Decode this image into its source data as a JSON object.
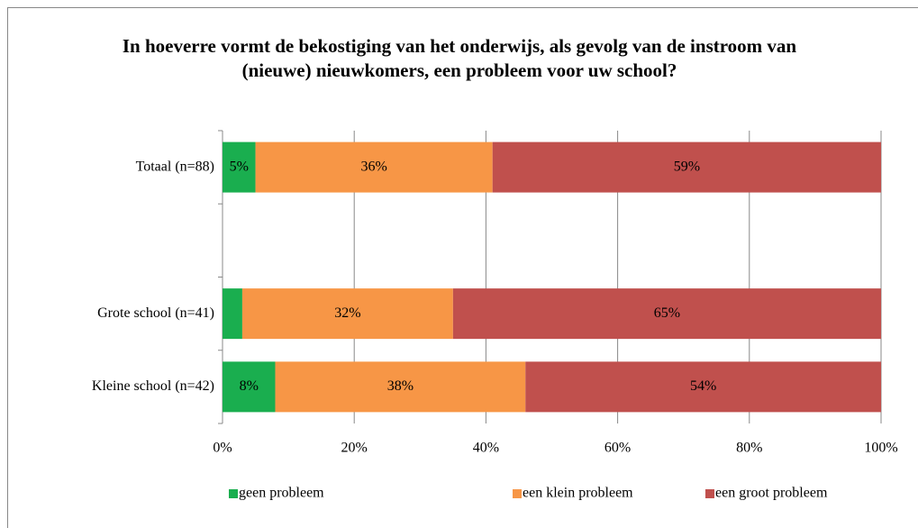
{
  "chart_data": {
    "type": "stacked_bar_horizontal",
    "title": "In hoeverre vormt de bekostiging van het onderwijs, als gevolg van de instroom van (nieuwe) nieuwkomers, een probleem voor uw school?",
    "categories": [
      "Totaal (n=88)",
      null,
      "Grote school (n=41)",
      "Kleine school (n=42)"
    ],
    "series": [
      {
        "name": "geen probleem",
        "color": "#1aae4f",
        "values": [
          5,
          null,
          3,
          8
        ],
        "value_labels": [
          "5%",
          null,
          null,
          "8%"
        ]
      },
      {
        "name": "een klein probleem",
        "color": "#f79646",
        "values": [
          36,
          null,
          32,
          38
        ],
        "value_labels": [
          "36%",
          null,
          "32%",
          "38%"
        ]
      },
      {
        "name": "een groot probleem",
        "color": "#c0504d",
        "values": [
          59,
          null,
          65,
          54
        ],
        "value_labels": [
          "59%",
          null,
          "65%",
          "54%"
        ]
      }
    ],
    "xlim": [
      0,
      100
    ],
    "xticks": [
      {
        "value": 0,
        "label": "0%"
      },
      {
        "value": 20,
        "label": "20%"
      },
      {
        "value": 40,
        "label": "40%"
      },
      {
        "value": 60,
        "label": "60%"
      },
      {
        "value": 80,
        "label": "80%"
      },
      {
        "value": 100,
        "label": "100%"
      }
    ],
    "grid": true,
    "legend": "bottom"
  }
}
